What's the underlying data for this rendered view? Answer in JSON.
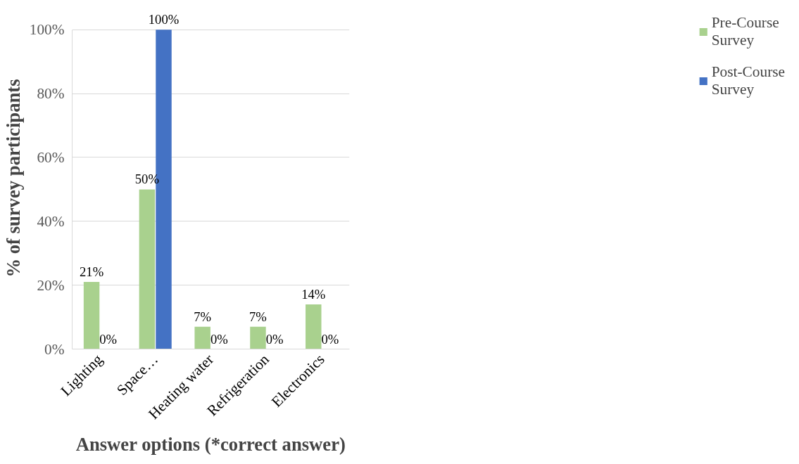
{
  "chart_data": {
    "type": "bar",
    "xlabel": "Answer options (*correct answer)",
    "ylabel": "% of survey participants",
    "categories": [
      "Lighting",
      "Space…",
      "Heating water",
      "Refrigeration",
      "Electronics"
    ],
    "series": [
      {
        "name": "Pre-Course Survey",
        "color": "#a9d18e",
        "values": [
          21,
          50,
          7,
          7,
          14
        ],
        "value_labels": [
          "21%",
          "50%",
          "7%",
          "7%",
          "14%"
        ]
      },
      {
        "name": "Post-Course Survey",
        "color": "#4472c4",
        "values": [
          0,
          100,
          0,
          0,
          0
        ],
        "value_labels": [
          "0%",
          "100%",
          "0%",
          "0%",
          "0%"
        ]
      }
    ],
    "ylim": [
      0,
      100
    ],
    "yticks": [
      {
        "value": 0,
        "label": "0%"
      },
      {
        "value": 20,
        "label": "20%"
      },
      {
        "value": 40,
        "label": "40%"
      },
      {
        "value": 60,
        "label": "60%"
      },
      {
        "value": 80,
        "label": "80%"
      },
      {
        "value": 100,
        "label": "100%"
      }
    ],
    "grid": "y",
    "legend": "right"
  }
}
